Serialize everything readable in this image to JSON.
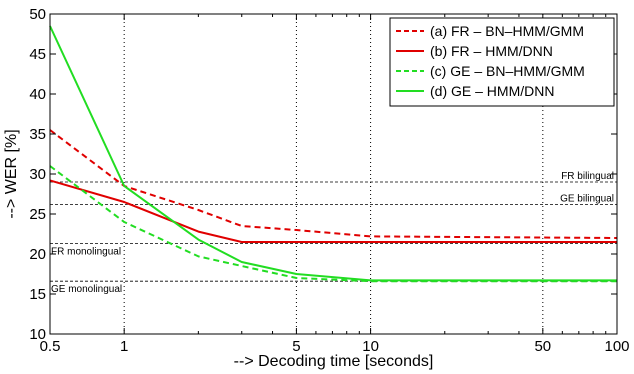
{
  "chart_data": {
    "type": "line",
    "title": "",
    "xlabel": "--> Decoding time [seconds]",
    "ylabel": "--> WER [%]",
    "xscale": "log",
    "xlim": [
      0.5,
      100
    ],
    "ylim": [
      10,
      50
    ],
    "xticks": [
      0.5,
      1,
      5,
      10,
      50,
      100
    ],
    "xtick_labels": [
      "0.5",
      "1",
      "5",
      "10",
      "50",
      "100"
    ],
    "yticks": [
      10,
      15,
      20,
      25,
      30,
      35,
      40,
      45,
      50
    ],
    "ytick_labels": [
      "10",
      "15",
      "20",
      "25",
      "30",
      "35",
      "40",
      "45",
      "50"
    ],
    "grid": "vertical dotted at labeled x ticks",
    "legend_position": "top-right",
    "series": [
      {
        "name": "(a) FR – BN–HMM/GMM",
        "color": "#e00000",
        "style": "dashed",
        "x": [
          0.5,
          1,
          2,
          3,
          5,
          10,
          100
        ],
        "y": [
          35.5,
          28.5,
          25.5,
          23.5,
          23,
          22.2,
          22
        ]
      },
      {
        "name": "(b) FR – HMM/DNN",
        "color": "#e00000",
        "style": "solid",
        "x": [
          0.5,
          1,
          2,
          3,
          5,
          10,
          100
        ],
        "y": [
          29.2,
          26.5,
          22.8,
          21.5,
          21.5,
          21.5,
          21.5
        ]
      },
      {
        "name": "(c) GE – BN–HMM/GMM",
        "color": "#22dd22",
        "style": "dashed",
        "x": [
          0.5,
          1,
          2,
          3,
          5,
          10,
          100
        ],
        "y": [
          31,
          24,
          19.7,
          18.5,
          17,
          16.6,
          16.6
        ]
      },
      {
        "name": "(d) GE – HMM/DNN",
        "color": "#22dd22",
        "style": "solid",
        "x": [
          0.5,
          1,
          2,
          3,
          5,
          10,
          100
        ],
        "y": [
          48.5,
          28.5,
          21.8,
          19,
          17.5,
          16.7,
          16.7
        ]
      }
    ],
    "reference_lines": [
      {
        "label": "FR bilingual",
        "y": 29,
        "label_side": "right"
      },
      {
        "label": "GE bilingual",
        "y": 26.2,
        "label_side": "right"
      },
      {
        "label": "FR monolingual",
        "y": 21.3,
        "label_side": "left"
      },
      {
        "label": "GE monolingual",
        "y": 16.6,
        "label_side": "left"
      }
    ]
  }
}
